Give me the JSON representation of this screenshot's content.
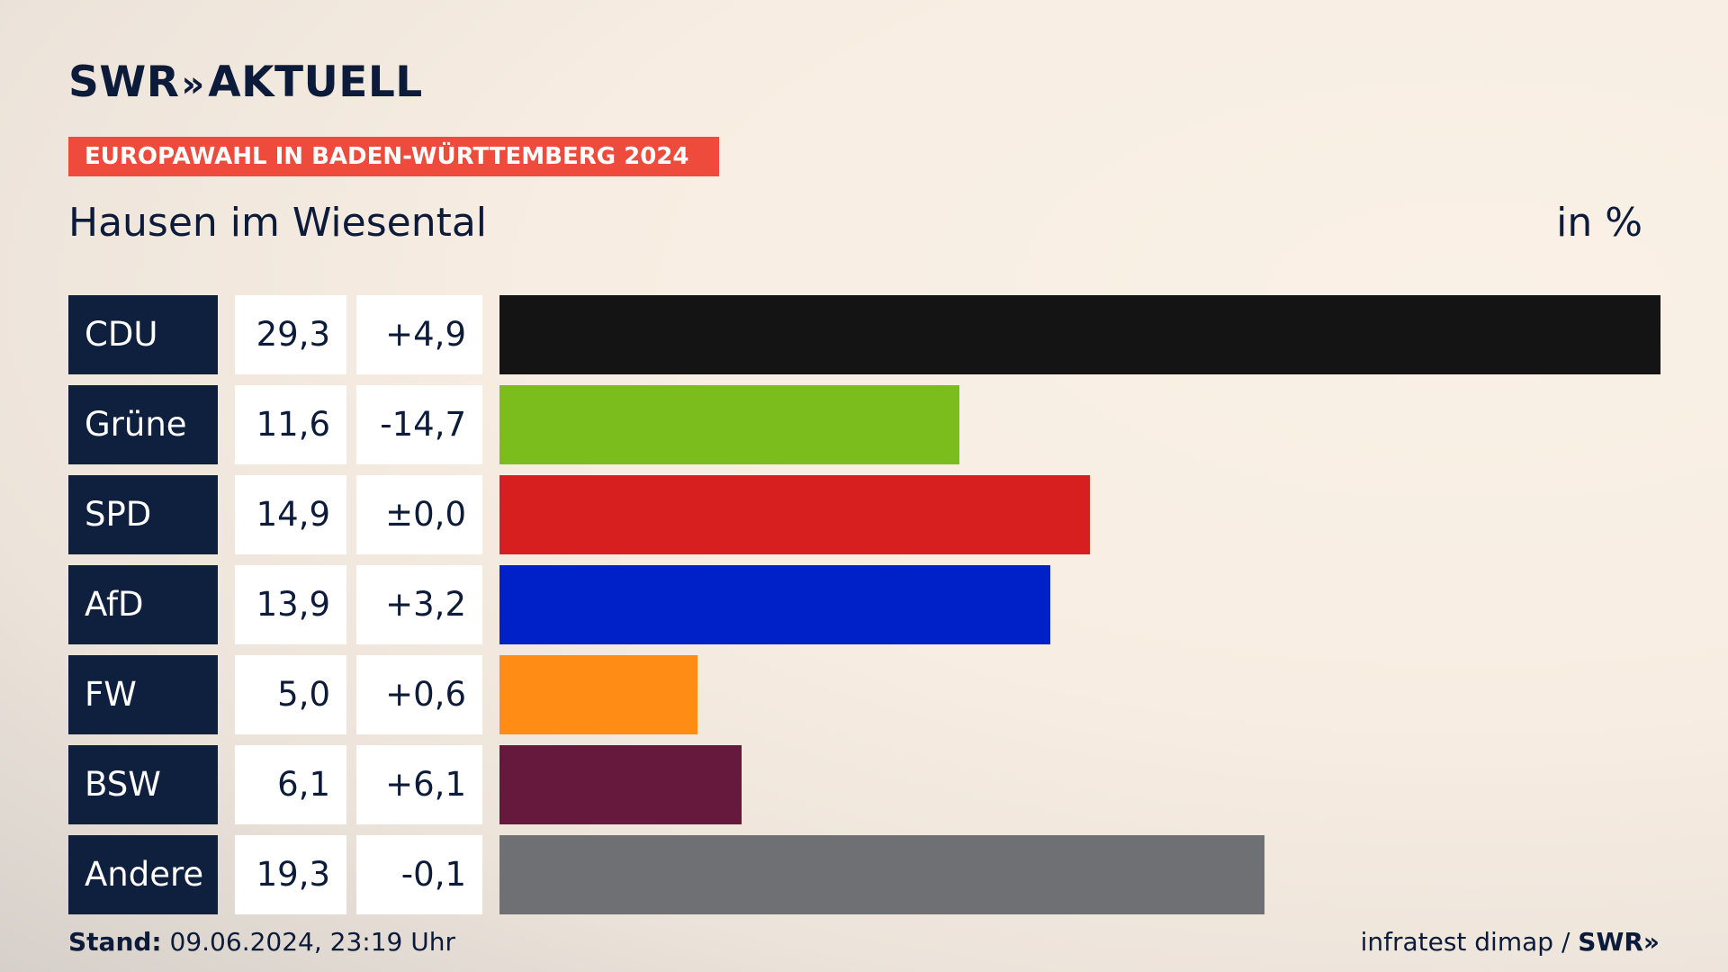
{
  "header": {
    "logo_text": "SWR",
    "logo_chevron": "»",
    "logo_suffix": "AKTUELL",
    "banner": "EUROPAWAHL IN BADEN-WÜRTTEMBERG 2024",
    "subtitle": "Hausen im Wiesental",
    "unit": "in %"
  },
  "footer": {
    "stand_label": "Stand:",
    "stand_value": "09.06.2024, 23:19 Uhr",
    "source": "infratest dimap /",
    "source_logo": "SWR»"
  },
  "chart_data": {
    "type": "bar",
    "orientation": "horizontal",
    "categories": [
      "CDU",
      "Grüne",
      "SPD",
      "AfD",
      "FW",
      "BSW",
      "Andere"
    ],
    "values": [
      29.3,
      11.6,
      14.9,
      13.9,
      5.0,
      6.1,
      19.3
    ],
    "value_labels": [
      "29,3",
      "11,6",
      "14,9",
      "13,9",
      "5,0",
      "6,1",
      "19,3"
    ],
    "diff_labels": [
      "+4,9",
      "-14,7",
      "±0,0",
      "+3,2",
      "+0,6",
      "+6,1",
      "-0,1"
    ],
    "colors": [
      "#141414",
      "#7bbd1c",
      "#d71f1f",
      "#0020c8",
      "#ff8c14",
      "#66193c",
      "#6f7073"
    ],
    "title": "Hausen im Wiesental",
    "unit": "in %",
    "xlim": [
      0,
      29.3
    ],
    "legend": "none",
    "grid": false
  }
}
